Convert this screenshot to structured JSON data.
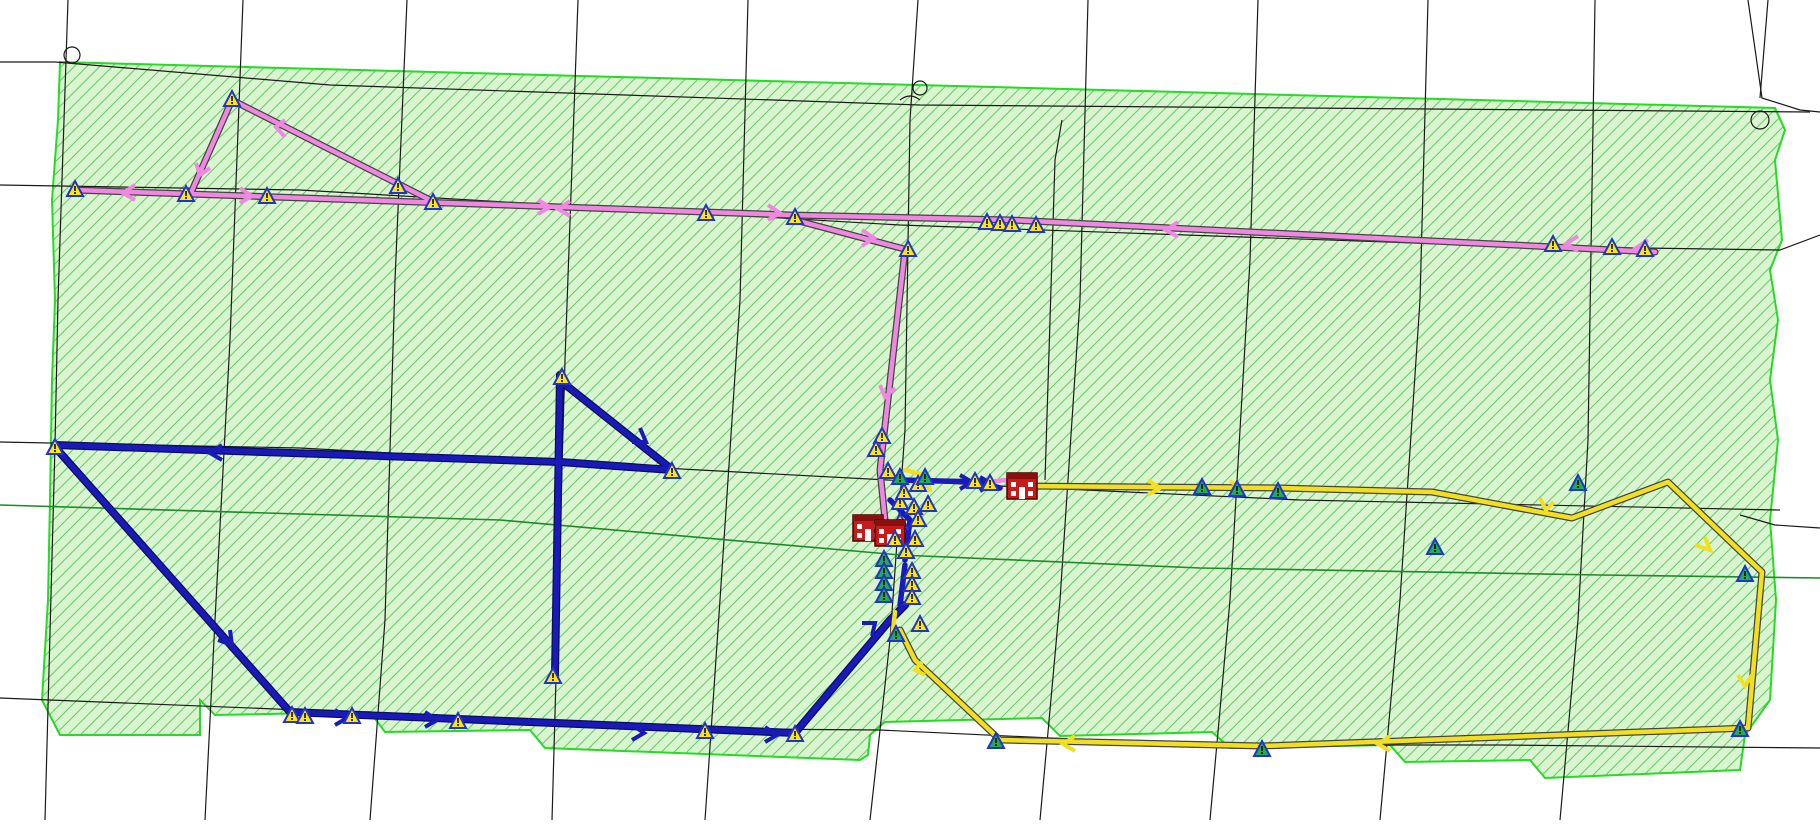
{
  "map": {
    "type": "school-bus-route-map",
    "colors": {
      "background": "#ffffff",
      "district_fill": "#c9f0c0",
      "district_hatch": "#6cc86a",
      "district_border": "#22dd22",
      "road": "#1a1a1a",
      "highway": "#1f8a2a",
      "route_pink": "#ee88e0",
      "route_blue": "#1a1ab8",
      "route_yellow": "#f2e020",
      "stop_yellow": "#ffe800",
      "stop_green": "#22aa55",
      "stop_outline": "#2233cc",
      "school": "#c81a1a"
    },
    "routes": [
      {
        "name": "pink",
        "color": "route_pink",
        "stop_style": "yellow"
      },
      {
        "name": "blue",
        "color": "route_blue",
        "stop_style": "yellow"
      },
      {
        "name": "yellow",
        "color": "route_yellow",
        "stop_style": "green"
      }
    ],
    "schools": [
      {
        "id": "school-west"
      },
      {
        "id": "school-east"
      }
    ],
    "icons": {
      "bus_stop": "warning-triangle-icon",
      "school": "school-building-icon",
      "direction": "direction-arrow-icon"
    }
  }
}
